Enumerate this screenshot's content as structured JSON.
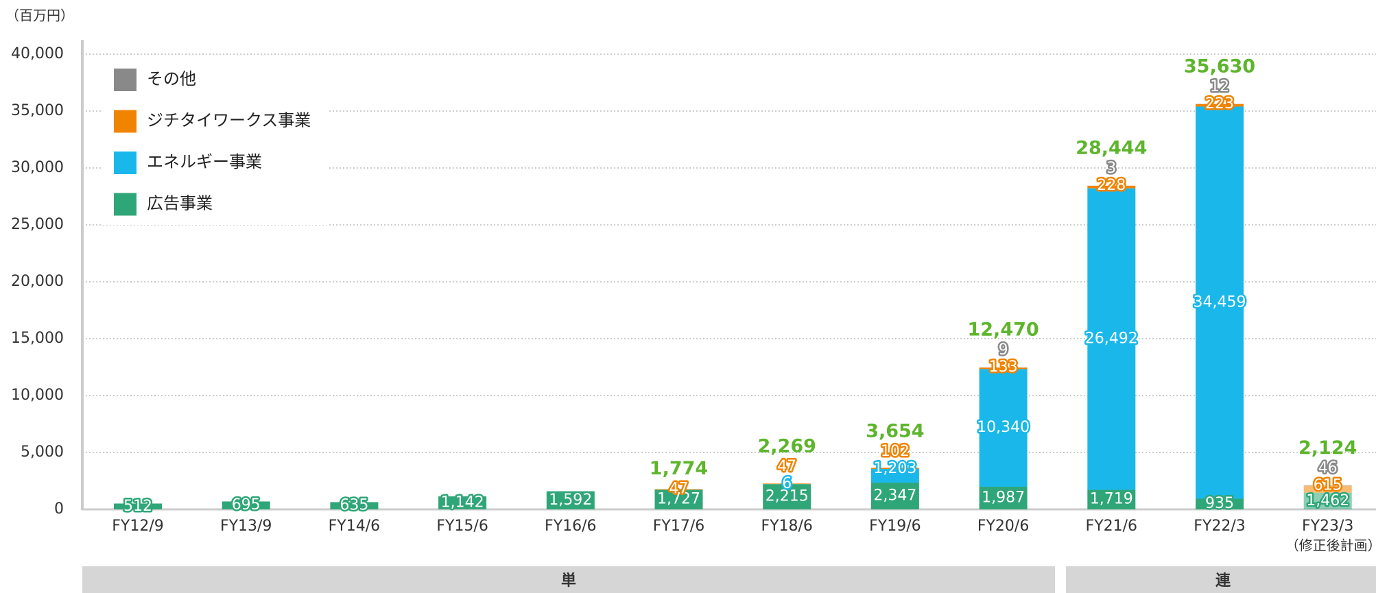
{
  "chart_data": {
    "type": "bar",
    "stacked": true,
    "unit_label": "（百万円）",
    "categories": [
      "FY12/9",
      "FY13/9",
      "FY14/6",
      "FY15/6",
      "FY16/6",
      "FY17/6",
      "FY18/6",
      "FY19/6",
      "FY20/6",
      "FY21/6",
      "FY22/3",
      "FY23/3"
    ],
    "category_note": "（修正後計画）",
    "series": [
      {
        "name": "広告事業",
        "color": "#2fa677",
        "values": [
          512,
          695,
          635,
          1142,
          1592,
          1727,
          2215,
          2347,
          1987,
          1719,
          935,
          1462
        ],
        "value_labels": [
          "512",
          "695",
          "635",
          "1,142",
          "1,592",
          "1,727",
          "2,215",
          "2,347",
          "1,987",
          "1,719",
          "935",
          "1,462"
        ]
      },
      {
        "name": "エネルギー事業",
        "color": "#1ab8ea",
        "values": [
          null,
          null,
          null,
          null,
          null,
          null,
          6,
          1203,
          10340,
          26492,
          34459,
          null
        ],
        "value_labels": [
          null,
          null,
          null,
          null,
          null,
          null,
          "6",
          "1,203",
          "10,340",
          "26,492",
          "34,459",
          null
        ]
      },
      {
        "name": "ジチタイワークス事業",
        "color": "#f08300",
        "values": [
          null,
          null,
          null,
          null,
          null,
          47,
          47,
          102,
          133,
          228,
          223,
          615
        ],
        "value_labels": [
          null,
          null,
          null,
          null,
          null,
          "47",
          "47",
          "102",
          "133",
          "228",
          "223",
          "615"
        ]
      },
      {
        "name": "その他",
        "color": "#898989",
        "values": [
          null,
          null,
          null,
          null,
          null,
          null,
          null,
          null,
          9,
          3,
          12,
          46
        ],
        "value_labels": [
          null,
          null,
          null,
          null,
          null,
          null,
          null,
          null,
          "9",
          "3",
          "12",
          "46"
        ]
      }
    ],
    "totals": [
      null,
      null,
      null,
      null,
      null,
      1774,
      2269,
      3654,
      12470,
      28444,
      35630,
      2124
    ],
    "total_labels": [
      null,
      null,
      null,
      null,
      null,
      "1,774",
      "2,269",
      "3,654",
      "12,470",
      "28,444",
      "35,630",
      "2,124"
    ],
    "ylim": [
      0,
      40000
    ],
    "yticks": [
      0,
      {
        "value": 5000,
        "label": "5,000"
      },
      {
        "value": 10000,
        "label": "10,000"
      },
      {
        "value": 15000,
        "label": "15,000"
      },
      {
        "value": 20000,
        "label": "20,000"
      },
      {
        "value": 25000,
        "label": "25,000"
      },
      {
        "value": 30000,
        "label": "30,000"
      },
      {
        "value": 35000,
        "label": "35,000"
      },
      {
        "value": 40000,
        "label": "40,000"
      }
    ],
    "grid": true,
    "legend": "upper left",
    "groups": [
      "単",
      "連"
    ]
  }
}
